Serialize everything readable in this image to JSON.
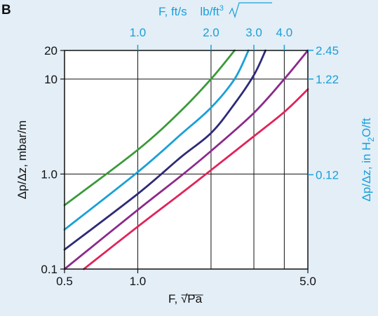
{
  "panel_label": "B",
  "chart_data": {
    "type": "line",
    "xscale": "log",
    "yscale": "log",
    "xlim": [
      0.5,
      5.0
    ],
    "ylim": [
      0.1,
      20
    ],
    "xlabel": "F, √Pa",
    "ylabel": "Δp/Δz, mbar/m",
    "x_ticks": [
      0.5,
      1.0,
      5.0
    ],
    "x_tick_labels": [
      "0.5",
      "1.0",
      "5.0"
    ],
    "y_ticks": [
      0.1,
      1.0,
      10,
      20
    ],
    "y_tick_labels": [
      "0.1",
      "1.0",
      "10",
      "20"
    ],
    "grid": true,
    "x_gridlines": [
      1.0,
      2.0,
      3.0,
      4.0
    ],
    "y_gridlines": [
      1.0,
      10
    ],
    "top_axis": {
      "label_main": "F, ft/s ",
      "label_root": "lb/ft",
      "label_exp": "3",
      "ticks": [
        1.0,
        2.0,
        3.0,
        4.0
      ],
      "tick_labels": [
        "1.0",
        "2.0",
        "3.0",
        "4.0"
      ]
    },
    "right_axis": {
      "label_main": "Δp/Δz, in H",
      "label_sub": "2",
      "label_tail": "O/ft",
      "ticks": [
        0.12,
        1.22,
        2.45
      ],
      "tick_labels": [
        "0.12",
        "1.22",
        "2.45"
      ]
    },
    "series": [
      {
        "color": "#3a9a3a",
        "x": [
          0.5,
          1.0,
          1.5,
          2.0,
          2.5
        ],
        "y": [
          0.47,
          1.8,
          4.6,
          10.0,
          20
        ]
      },
      {
        "color": "#1aa0d8",
        "x": [
          0.5,
          1.0,
          1.5,
          2.0,
          2.5,
          2.85
        ],
        "y": [
          0.26,
          1.05,
          2.6,
          5.0,
          10.0,
          20
        ]
      },
      {
        "color": "#2e2a78",
        "x": [
          0.5,
          1.0,
          1.5,
          2.0,
          2.5,
          3.0,
          3.35
        ],
        "y": [
          0.16,
          0.62,
          1.5,
          2.7,
          5.5,
          11.0,
          20
        ]
      },
      {
        "color": "#8b2a8b",
        "x": [
          0.5,
          1.0,
          1.5,
          2.0,
          3.0,
          4.0,
          5.0
        ],
        "y": [
          0.1,
          0.42,
          0.95,
          1.75,
          4.4,
          10.0,
          20
        ]
      },
      {
        "color": "#e0245a",
        "x": [
          0.6,
          1.0,
          1.5,
          2.0,
          3.0,
          4.0,
          5.0
        ],
        "y": [
          0.1,
          0.28,
          0.62,
          1.1,
          2.5,
          4.5,
          7.8
        ]
      }
    ]
  }
}
